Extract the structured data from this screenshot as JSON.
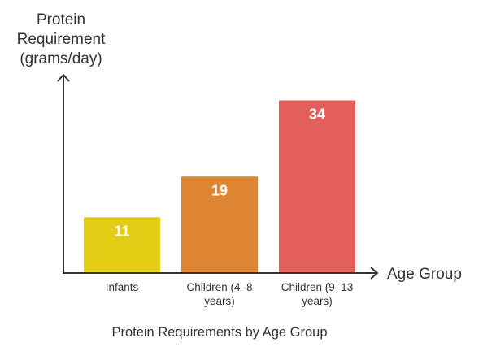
{
  "chart_data": {
    "type": "bar",
    "title": "Protein Requirements by Age Group",
    "ylabel": [
      "Protein",
      "Requirement",
      "(grams/day)"
    ],
    "xlabel": "Age Group",
    "ylim": [
      0,
      40
    ],
    "grid": false,
    "categories": [
      [
        "Infants"
      ],
      [
        "Children (4–8",
        "years)"
      ],
      [
        "Children (9–13",
        "years)"
      ]
    ],
    "values": [
      11,
      19,
      34
    ],
    "colors": [
      "#e2cd14",
      "#dd8533",
      "#e35f5c"
    ],
    "value_labels": [
      "11",
      "19",
      "34"
    ]
  }
}
